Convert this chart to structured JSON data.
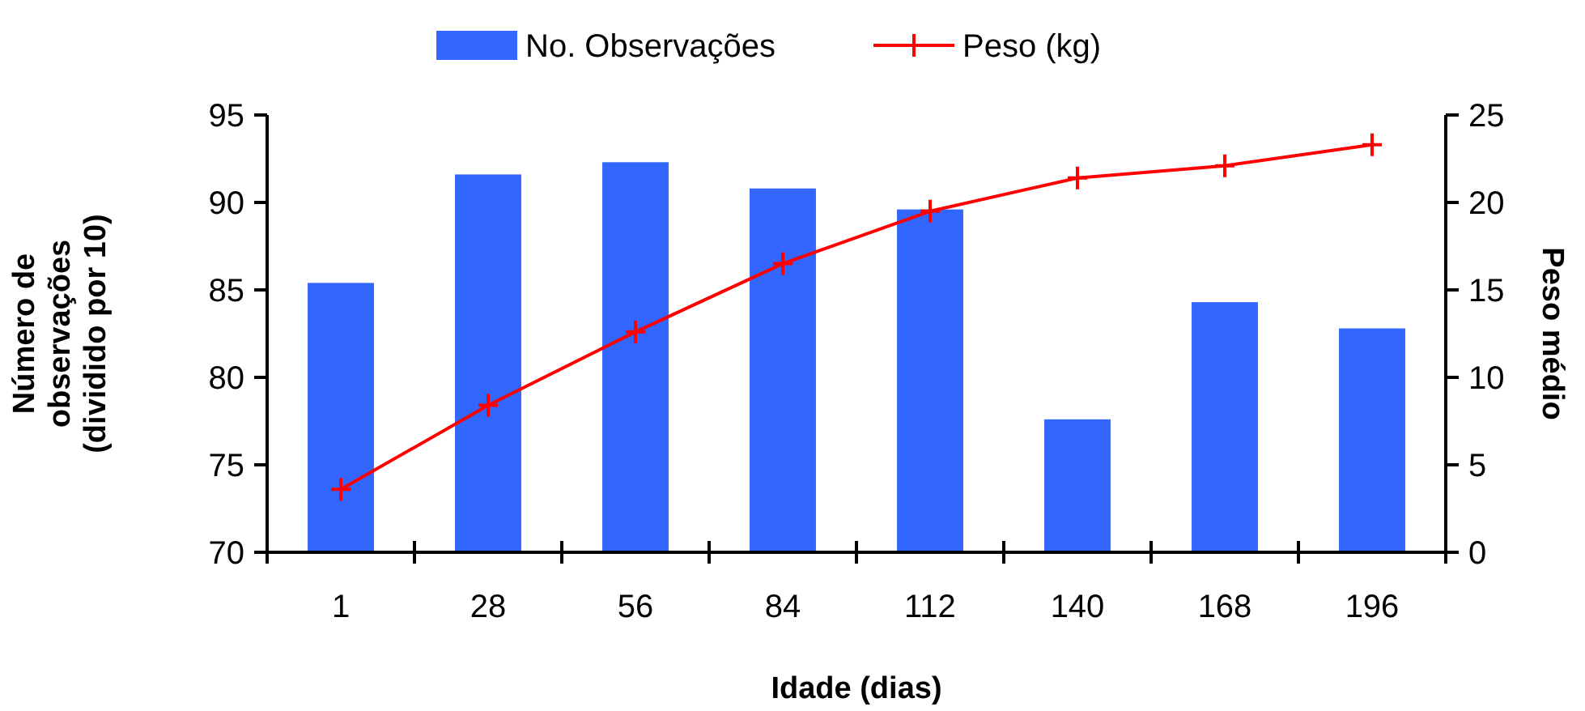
{
  "chart_data": {
    "type": "bar",
    "xlabel": "Idade (dias)",
    "ylabel": "Número de observações (dividido por 10)",
    "y2label": "Peso médio",
    "categories": [
      "1",
      "28",
      "56",
      "84",
      "112",
      "140",
      "168",
      "196"
    ],
    "series": [
      {
        "name": "No. Observações",
        "color": "#3366ff",
        "values": [
          85.4,
          91.6,
          92.3,
          90.8,
          89.6,
          77.6,
          84.3,
          82.8
        ]
      },
      {
        "name": "Peso (kg)",
        "type": "line",
        "axis": "y2",
        "color": "#ff0000",
        "marker": "cross",
        "values": [
          3.6,
          8.4,
          12.6,
          16.5,
          19.5,
          21.4,
          22.1,
          23.3
        ]
      }
    ],
    "ylim": [
      70,
      95
    ],
    "yticks": [
      70,
      75,
      80,
      85,
      90,
      95
    ],
    "y2lim": [
      0,
      25
    ],
    "y2ticks": [
      0,
      5,
      10,
      15,
      20,
      25
    ],
    "legend": "top",
    "grid": false
  }
}
